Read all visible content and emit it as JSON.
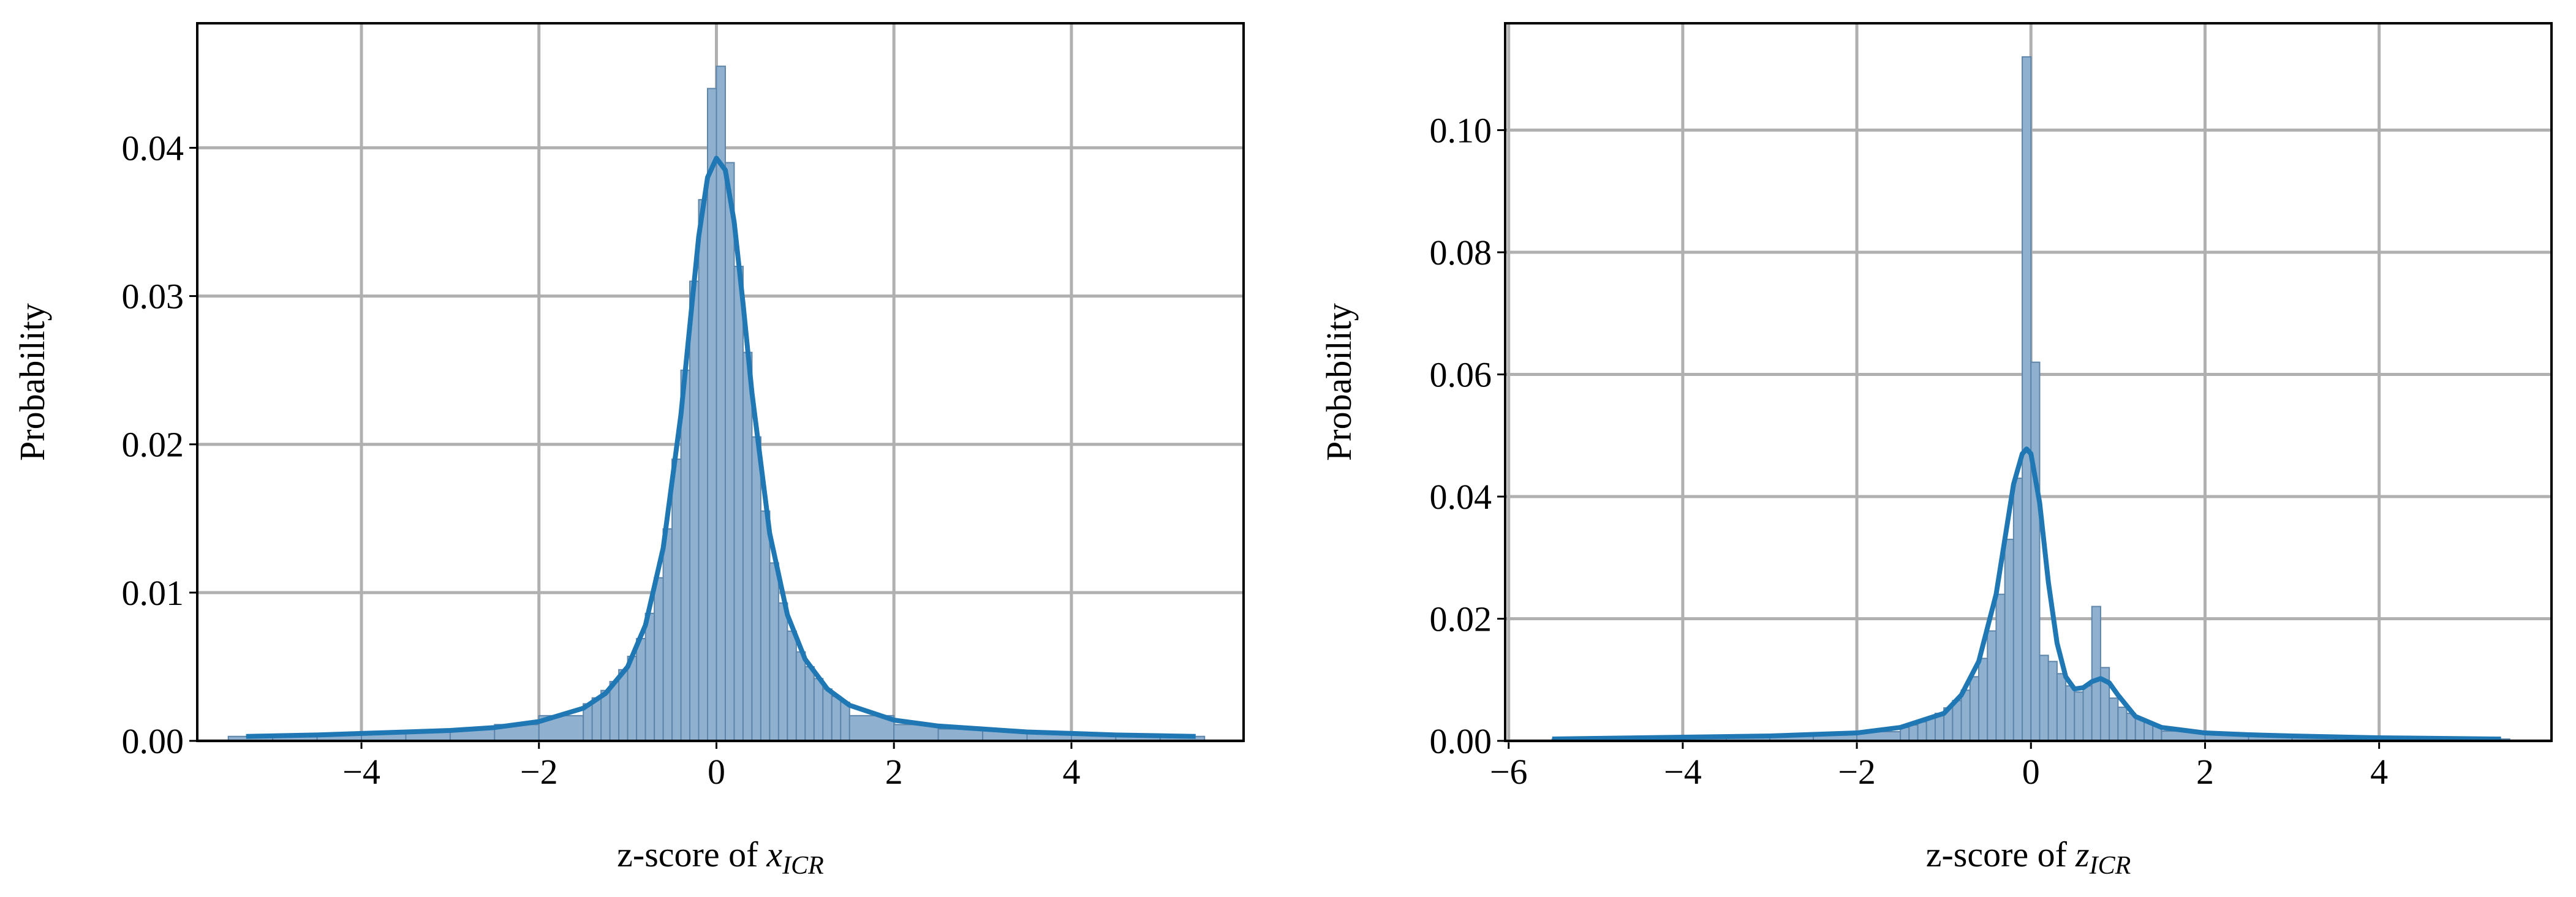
{
  "chart_data": [
    {
      "type": "histogram",
      "ylabel": "Probability",
      "xlabel": {
        "text": "z-score of",
        "symbol": "x",
        "subscript": "ICR"
      },
      "bins": [
        -5.5,
        -5,
        -4.5,
        -4,
        -3.5,
        -3,
        -2.5,
        -2,
        -1.5,
        -1.4,
        -1.3,
        -1.2,
        -1.1,
        -1.0,
        -0.9,
        -0.8,
        -0.7,
        -0.6,
        -0.5,
        -0.4,
        -0.3,
        -0.2,
        -0.1,
        0,
        0.1,
        0.2,
        0.3,
        0.4,
        0.5,
        0.6,
        0.7,
        0.8,
        0.9,
        1.0,
        1.1,
        1.2,
        1.3,
        1.4,
        1.5,
        2,
        2.5,
        3,
        3.5,
        4,
        4.5,
        5,
        5.5
      ],
      "values": [
        0.0003,
        0.0004,
        0.0005,
        0.0006,
        0.0007,
        0.0008,
        0.0011,
        0.0017,
        0.0025,
        0.0029,
        0.0034,
        0.004,
        0.0048,
        0.0057,
        0.0069,
        0.0086,
        0.011,
        0.0143,
        0.019,
        0.025,
        0.031,
        0.0365,
        0.044,
        0.0455,
        0.039,
        0.032,
        0.0262,
        0.0205,
        0.0155,
        0.012,
        0.0093,
        0.0074,
        0.006,
        0.005,
        0.0042,
        0.0035,
        0.003,
        0.0026,
        0.0017,
        0.0011,
        0.0008,
        0.0007,
        0.0006,
        0.0005,
        0.0004,
        0.0003
      ],
      "color": "#8fb0cf",
      "kde": {
        "color": "#1f77b4",
        "x": [
          -5.3,
          -4.5,
          -4,
          -3.5,
          -3,
          -2.5,
          -2,
          -1.5,
          -1.25,
          -1,
          -0.8,
          -0.6,
          -0.4,
          -0.3,
          -0.2,
          -0.1,
          0,
          0.1,
          0.2,
          0.3,
          0.4,
          0.6,
          0.8,
          1,
          1.25,
          1.5,
          2,
          2.5,
          3,
          3.5,
          4,
          4.5,
          5.4
        ],
        "values": [
          0.0003,
          0.0004,
          0.0005,
          0.0006,
          0.0007,
          0.0009,
          0.0013,
          0.0022,
          0.0032,
          0.005,
          0.0078,
          0.013,
          0.022,
          0.028,
          0.034,
          0.038,
          0.0393,
          0.0385,
          0.035,
          0.0295,
          0.0235,
          0.014,
          0.0085,
          0.0055,
          0.0035,
          0.0024,
          0.0014,
          0.001,
          0.0008,
          0.0006,
          0.0005,
          0.0004,
          0.0003
        ]
      },
      "xlim": [
        -5.85,
        5.94
      ],
      "ylim": [
        0,
        0.0484
      ],
      "xticks": [
        {
          "value": -4,
          "label": "−4"
        },
        {
          "value": -2,
          "label": "−2"
        },
        0,
        2,
        4
      ],
      "yticks": [
        {
          "value": 0,
          "label": "0.00"
        },
        0.01,
        0.02,
        0.03,
        0.04
      ],
      "grid": true
    },
    {
      "type": "histogram",
      "ylabel": "Probability",
      "xlabel": {
        "text": "z-score of",
        "symbol": "z",
        "subscript": "ICR"
      },
      "bins": [
        -5.5,
        -5,
        -4.5,
        -4,
        -3.5,
        -3,
        -2.5,
        -2,
        -1.5,
        -1.4,
        -1.3,
        -1.2,
        -1.1,
        -1.0,
        -0.9,
        -0.8,
        -0.7,
        -0.6,
        -0.5,
        -0.4,
        -0.3,
        -0.2,
        -0.1,
        0,
        0.1,
        0.2,
        0.3,
        0.4,
        0.5,
        0.6,
        0.7,
        0.8,
        0.9,
        1.0,
        1.1,
        1.2,
        1.3,
        1.4,
        1.5,
        2,
        2.5,
        3,
        3.5,
        4,
        4.5,
        5,
        5.5
      ],
      "values": [
        0.0003,
        0.0004,
        0.0005,
        0.0006,
        0.0007,
        0.0008,
        0.001,
        0.0015,
        0.0022,
        0.0026,
        0.0031,
        0.0037,
        0.0045,
        0.0054,
        0.0066,
        0.0083,
        0.0105,
        0.0135,
        0.018,
        0.024,
        0.033,
        0.043,
        0.112,
        0.062,
        0.014,
        0.013,
        0.011,
        0.009,
        0.008,
        0.009,
        0.022,
        0.012,
        0.007,
        0.0055,
        0.0045,
        0.0036,
        0.003,
        0.0025,
        0.0016,
        0.0011,
        0.0008,
        0.0006,
        0.0005,
        0.0004,
        0.0004,
        0.0003
      ],
      "color": "#8fb0cf",
      "kde": {
        "color": "#1f77b4",
        "x": [
          -5.5,
          -4.5,
          -4,
          -3,
          -2,
          -1.5,
          -1,
          -0.8,
          -0.6,
          -0.4,
          -0.3,
          -0.2,
          -0.1,
          -0.05,
          0,
          0.1,
          0.2,
          0.3,
          0.4,
          0.5,
          0.6,
          0.7,
          0.8,
          0.9,
          1.0,
          1.2,
          1.5,
          2,
          2.5,
          3,
          4,
          5.4
        ],
        "values": [
          0.0003,
          0.0005,
          0.0006,
          0.0008,
          0.0013,
          0.0022,
          0.0045,
          0.0075,
          0.013,
          0.024,
          0.033,
          0.042,
          0.047,
          0.0478,
          0.047,
          0.039,
          0.026,
          0.016,
          0.0105,
          0.0085,
          0.0087,
          0.0097,
          0.0102,
          0.0095,
          0.0075,
          0.004,
          0.0022,
          0.0013,
          0.001,
          0.0008,
          0.0005,
          0.0003
        ]
      },
      "xlim": [
        -6.04,
        5.98
      ],
      "ylim": [
        0,
        0.1175
      ],
      "xticks": [
        {
          "value": -6,
          "label": "−6"
        },
        {
          "value": -4,
          "label": "−4"
        },
        {
          "value": -2,
          "label": "−2"
        },
        0,
        2,
        4
      ],
      "yticks": [
        {
          "value": 0,
          "label": "0.00"
        },
        0.02,
        0.04,
        0.06,
        0.08,
        {
          "value": 0.1,
          "label": "0.10"
        }
      ],
      "grid": true
    }
  ]
}
